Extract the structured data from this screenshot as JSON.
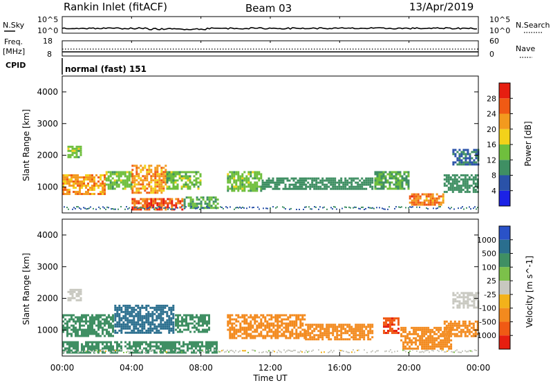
{
  "header": {
    "station": "Rankin Inlet (fitACF)",
    "beam": "Beam 03",
    "date": "13/Apr/2019"
  },
  "top_panels": {
    "nsky_label": "N.Sky",
    "nsky_top": "10^5",
    "nsky_bottom": "10^0",
    "nsearch_top": "10^5",
    "nsearch_bottom": "10^0",
    "nsearch_label": "N.Search",
    "freq_label_1": "Freq.",
    "freq_label_2": "[MHz]",
    "freq_top": "18",
    "freq_bottom": "8",
    "nave_top": "60",
    "nave_bottom": "0",
    "nave_label": "Nave",
    "cpid_label": "CPID",
    "cpid_value": "normal (fast) 151"
  },
  "chart_data": [
    {
      "type": "heatmap",
      "name": "power",
      "ylabel": "Slant Range [km]",
      "ylim": [
        180,
        4500
      ],
      "yticks": [
        "1000",
        "2000",
        "3000",
        "4000"
      ],
      "xlim": [
        0,
        24
      ],
      "colorbar_label": "Power [dB]",
      "colorbar_ticks": [
        "4",
        "8",
        "12",
        "16",
        "20",
        "24",
        "28"
      ],
      "colorbar_colors": [
        "#1c22e6",
        "#2a52a8",
        "#3f8f63",
        "#6fbf3d",
        "#f3d21a",
        "#f39a1e",
        "#f05a14",
        "#e61e10"
      ],
      "regions": [
        {
          "x": [
            0.3,
            1.1
          ],
          "y": [
            1900,
            2300
          ],
          "value": 14
        },
        {
          "x": [
            0.0,
            2.5
          ],
          "y": [
            750,
            1400
          ],
          "value": 22
        },
        {
          "x": [
            2.5,
            4.0
          ],
          "y": [
            900,
            1500
          ],
          "value": 14
        },
        {
          "x": [
            4.0,
            6.0
          ],
          "y": [
            800,
            1700
          ],
          "value": 22
        },
        {
          "x": [
            6.0,
            8.0
          ],
          "y": [
            900,
            1500
          ],
          "value": 14
        },
        {
          "x": [
            4.0,
            7.0
          ],
          "y": [
            250,
            650
          ],
          "value": 26
        },
        {
          "x": [
            7.0,
            9.0
          ],
          "y": [
            300,
            700
          ],
          "value": 12
        },
        {
          "x": [
            9.5,
            11.5
          ],
          "y": [
            850,
            1500
          ],
          "value": 14
        },
        {
          "x": [
            11.5,
            14.0
          ],
          "y": [
            900,
            1300
          ],
          "value": 10
        },
        {
          "x": [
            14.0,
            18.0
          ],
          "y": [
            900,
            1300
          ],
          "value": 10
        },
        {
          "x": [
            18.0,
            20.0
          ],
          "y": [
            900,
            1500
          ],
          "value": 12
        },
        {
          "x": [
            20.0,
            22.0
          ],
          "y": [
            400,
            800
          ],
          "value": 24
        },
        {
          "x": [
            22.5,
            24.0
          ],
          "y": [
            1700,
            2200
          ],
          "value": 8
        },
        {
          "x": [
            22.0,
            24.0
          ],
          "y": [
            800,
            1400
          ],
          "value": 10
        }
      ]
    },
    {
      "type": "heatmap",
      "name": "velocity",
      "ylabel": "Slant Range [km]",
      "ylim": [
        180,
        4500
      ],
      "yticks": [
        "1000",
        "2000",
        "3000",
        "4000"
      ],
      "xlabel": "Time UT",
      "xticks": [
        "00:00",
        "04:00",
        "08:00",
        "12:00",
        "16:00",
        "20:00",
        "00:00"
      ],
      "xlim": [
        0,
        24
      ],
      "colorbar_label": "Velocity [m s^-1]",
      "colorbar_ticks": [
        "1000",
        "500",
        "100",
        "25",
        "-25",
        "-100",
        "-500",
        "-1000"
      ],
      "colorbar_colors": [
        "#2a52c8",
        "#2a6e8e",
        "#3f8f63",
        "#7cc04a",
        "#c8c8c0",
        "#f3b21a",
        "#f38a1e",
        "#f05a14",
        "#e61e10"
      ],
      "regions": [
        {
          "x": [
            0.3,
            1.1
          ],
          "y": [
            1900,
            2300
          ],
          "value": 0
        },
        {
          "x": [
            0.0,
            3.0
          ],
          "y": [
            750,
            1500
          ],
          "value": 200
        },
        {
          "x": [
            3.0,
            6.5
          ],
          "y": [
            900,
            1800
          ],
          "value": 800
        },
        {
          "x": [
            6.5,
            8.5
          ],
          "y": [
            900,
            1500
          ],
          "value": 300
        },
        {
          "x": [
            0.0,
            9.0
          ],
          "y": [
            250,
            650
          ],
          "value": 150
        },
        {
          "x": [
            9.5,
            14.0
          ],
          "y": [
            700,
            1500
          ],
          "value": -200
        },
        {
          "x": [
            14.0,
            18.0
          ],
          "y": [
            700,
            1200
          ],
          "value": -150
        },
        {
          "x": [
            18.5,
            19.5
          ],
          "y": [
            900,
            1400
          ],
          "value": -900
        },
        {
          "x": [
            19.5,
            22.5
          ],
          "y": [
            400,
            1100
          ],
          "value": -250
        },
        {
          "x": [
            22.5,
            24.0
          ],
          "y": [
            1700,
            2200
          ],
          "value": 0
        },
        {
          "x": [
            22.0,
            24.0
          ],
          "y": [
            800,
            1300
          ],
          "value": -300
        }
      ]
    }
  ]
}
